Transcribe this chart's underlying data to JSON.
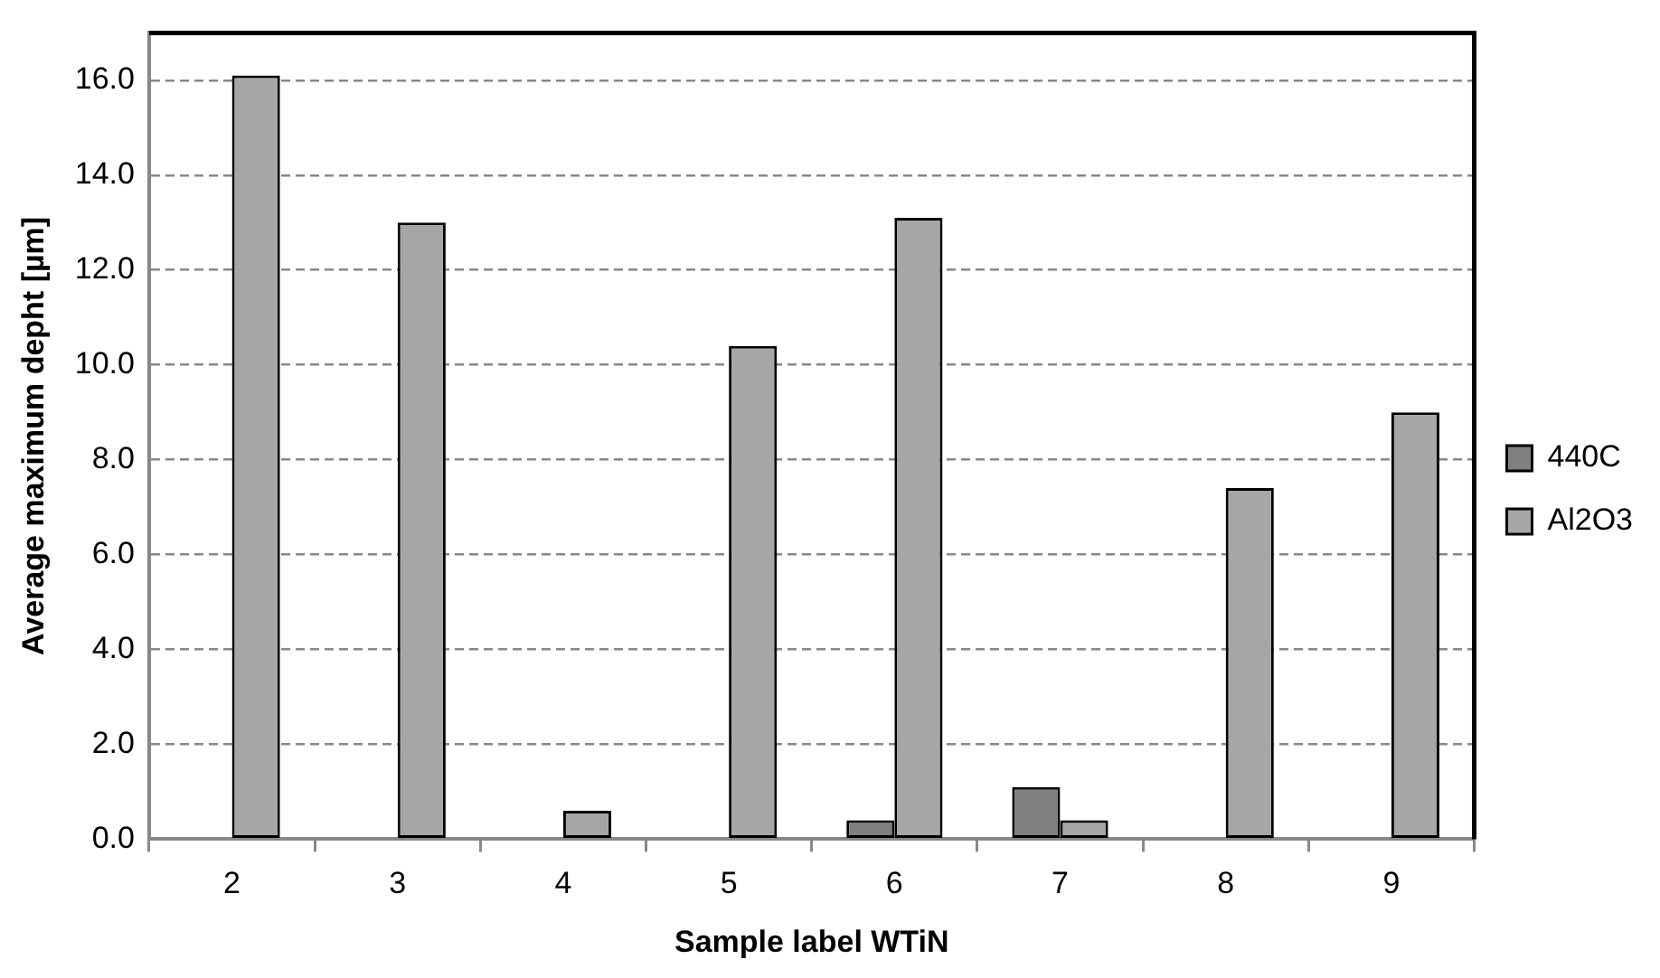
{
  "chart_data": {
    "type": "bar",
    "xlabel": "Sample label WTiN",
    "ylabel": "Average maximum depht [µm]",
    "categories": [
      "2",
      "3",
      "4",
      "5",
      "6",
      "7",
      "8",
      "9"
    ],
    "series": [
      {
        "name": "440C",
        "color": "#808080",
        "values": [
          0,
          0,
          0,
          0,
          0.4,
          1.1,
          0,
          0
        ]
      },
      {
        "name": "Al2O3",
        "color": "#a6a6a6",
        "values": [
          16.1,
          13.0,
          0.6,
          10.4,
          13.1,
          0.4,
          7.4,
          9.0
        ]
      }
    ],
    "ylim": [
      0,
      17
    ],
    "yticks": [
      {
        "value": 0,
        "label": "0.0"
      },
      {
        "value": 2,
        "label": "2.0"
      },
      {
        "value": 4,
        "label": "4.0"
      },
      {
        "value": 6,
        "label": "6.0"
      },
      {
        "value": 8,
        "label": "8.0"
      },
      {
        "value": 10,
        "label": "10.0"
      },
      {
        "value": 12,
        "label": "12.0"
      },
      {
        "value": 14,
        "label": "14.0"
      },
      {
        "value": 16,
        "label": "16.0"
      }
    ],
    "grid": "y",
    "legend": "right"
  }
}
